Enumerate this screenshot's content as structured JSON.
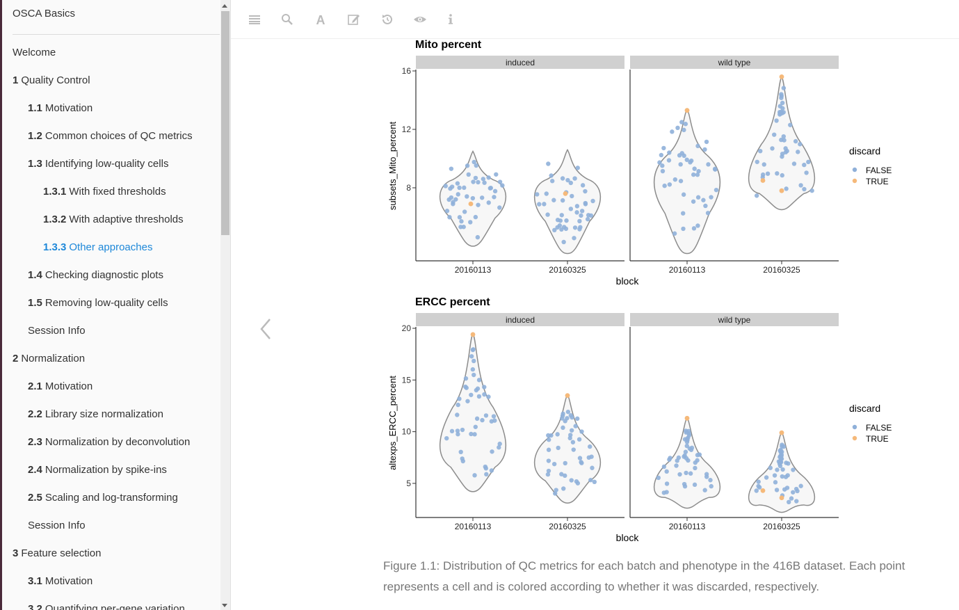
{
  "sidebar": {
    "book_title": "OSCA Basics",
    "items": [
      {
        "num": "",
        "label": "Welcome",
        "level": 0
      },
      {
        "num": "1",
        "label": "Quality Control",
        "level": 0
      },
      {
        "num": "1.1",
        "label": "Motivation",
        "level": 1
      },
      {
        "num": "1.2",
        "label": "Common choices of QC metrics",
        "level": 1
      },
      {
        "num": "1.3",
        "label": "Identifying low-quality cells",
        "level": 1
      },
      {
        "num": "1.3.1",
        "label": "With fixed thresholds",
        "level": 2
      },
      {
        "num": "1.3.2",
        "label": "With adaptive thresholds",
        "level": 2
      },
      {
        "num": "1.3.3",
        "label": "Other approaches",
        "level": 2,
        "active": true
      },
      {
        "num": "1.4",
        "label": "Checking diagnostic plots",
        "level": 1
      },
      {
        "num": "1.5",
        "label": "Removing low-quality cells",
        "level": 1
      },
      {
        "num": "",
        "label": "Session Info",
        "level": 1
      },
      {
        "num": "2",
        "label": "Normalization",
        "level": 0
      },
      {
        "num": "2.1",
        "label": "Motivation",
        "level": 1
      },
      {
        "num": "2.2",
        "label": "Library size normalization",
        "level": 1
      },
      {
        "num": "2.3",
        "label": "Normalization by deconvolution",
        "level": 1
      },
      {
        "num": "2.4",
        "label": "Normalization by spike-ins",
        "level": 1
      },
      {
        "num": "2.5",
        "label": "Scaling and log-transforming",
        "level": 1
      },
      {
        "num": "",
        "label": "Session Info",
        "level": 1
      },
      {
        "num": "3",
        "label": "Feature selection",
        "level": 0
      },
      {
        "num": "3.1",
        "label": "Motivation",
        "level": 1
      },
      {
        "num": "3.2",
        "label": "Quantifying per-gene variation",
        "level": 1
      }
    ]
  },
  "toolbar": {
    "icons": [
      "hamburger-icon",
      "search-icon",
      "font-icon",
      "edit-icon",
      "history-icon",
      "eye-icon",
      "info-icon"
    ]
  },
  "colors": {
    "false_point": "#8fb0d9",
    "true_point": "#f5b97a",
    "violin_stroke": "#8c8c8c",
    "strip": "#d0d0d0",
    "active_link": "#1e88d9"
  },
  "chart_data": [
    {
      "type": "violin",
      "title": "Mito percent",
      "ylabel": "subsets_Mito_percent",
      "xlabel": "block",
      "ylim": [
        3,
        16
      ],
      "yticks": [
        8,
        12,
        16
      ],
      "facets": [
        "induced",
        "wild type"
      ],
      "categories": [
        "20160113",
        "20160325"
      ],
      "legend": {
        "title": "discard",
        "entries": [
          "FALSE",
          "TRUE"
        ]
      },
      "groups": [
        {
          "facet": "induced",
          "category": "20160113",
          "min": 4.0,
          "max": 10.5,
          "median": 7.5,
          "discarded": [
            6.9
          ]
        },
        {
          "facet": "induced",
          "category": "20160325",
          "min": 3.5,
          "max": 10.6,
          "median": 7.5,
          "discarded": [
            7.6
          ]
        },
        {
          "facet": "wild type",
          "category": "20160113",
          "min": 3.5,
          "max": 13.4,
          "median": 8.5,
          "discarded": [
            13.3
          ]
        },
        {
          "facet": "wild type",
          "category": "20160325",
          "min": 6.5,
          "max": 15.6,
          "median": 8.5,
          "discarded": [
            15.6,
            8.5,
            7.8
          ]
        }
      ]
    },
    {
      "type": "violin",
      "title": "ERCC percent",
      "ylabel": "altexps_ERCC_percent",
      "xlabel": "block",
      "ylim": [
        1.7,
        20
      ],
      "yticks": [
        5,
        10,
        15,
        20
      ],
      "facets": [
        "induced",
        "wild type"
      ],
      "categories": [
        "20160113",
        "20160325"
      ],
      "legend": {
        "title": "discard",
        "entries": [
          "FALSE",
          "TRUE"
        ]
      },
      "groups": [
        {
          "facet": "induced",
          "category": "20160113",
          "min": 4.2,
          "max": 19.5,
          "median": 8.5,
          "discarded": [
            19.4
          ]
        },
        {
          "facet": "induced",
          "category": "20160325",
          "min": 3.1,
          "max": 13.6,
          "median": 7.0,
          "discarded": [
            13.5
          ]
        },
        {
          "facet": "wild type",
          "category": "20160113",
          "min": 2.6,
          "max": 11.4,
          "median": 4.5,
          "discarded": [
            11.3
          ]
        },
        {
          "facet": "wild type",
          "category": "20160325",
          "min": 2.2,
          "max": 10.0,
          "median": 3.5,
          "discarded": [
            9.9,
            4.3,
            3.6
          ]
        }
      ]
    }
  ],
  "caption": "Figure 1.1: Distribution of QC metrics for each batch and phenotype in the 416B dataset. Each point represents a cell and is colored according to whether it was discarded, respectively."
}
